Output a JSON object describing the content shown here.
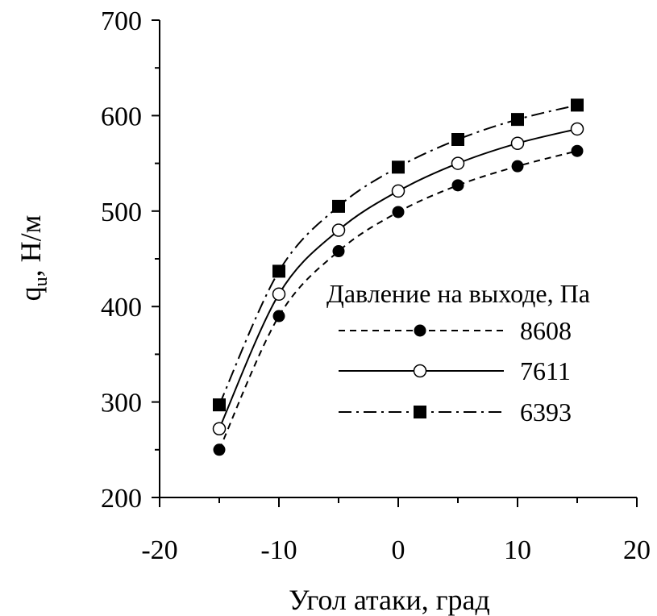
{
  "chart_data": {
    "type": "line",
    "title": "",
    "xlabel": "Угол атаки, град",
    "ylabel": {
      "main": "q",
      "sub": "u",
      "unit": ",  Н/м"
    },
    "xlim": [
      -20,
      20
    ],
    "ylim": [
      200,
      700
    ],
    "xticks": [
      -20,
      -10,
      0,
      10,
      20
    ],
    "yticks": [
      200,
      300,
      400,
      500,
      600,
      700
    ],
    "x": [
      -15,
      -10,
      -5,
      0,
      5,
      10,
      15
    ],
    "legend": {
      "title": "Давление на выходе, Па",
      "position": "right-center"
    },
    "grid": false,
    "series": [
      {
        "name": "8608",
        "values": [
          250,
          390,
          458,
          499,
          527,
          547,
          563
        ],
        "marker": "filled-circle",
        "line": "dashed",
        "color": "#000000"
      },
      {
        "name": "7611",
        "values": [
          272,
          413,
          480,
          521,
          550,
          571,
          586
        ],
        "marker": "open-circle",
        "line": "solid",
        "color": "#000000"
      },
      {
        "name": "6393",
        "values": [
          297,
          437,
          505,
          546,
          575,
          596,
          611
        ],
        "marker": "filled-square",
        "line": "dash-dot",
        "color": "#000000"
      }
    ]
  }
}
